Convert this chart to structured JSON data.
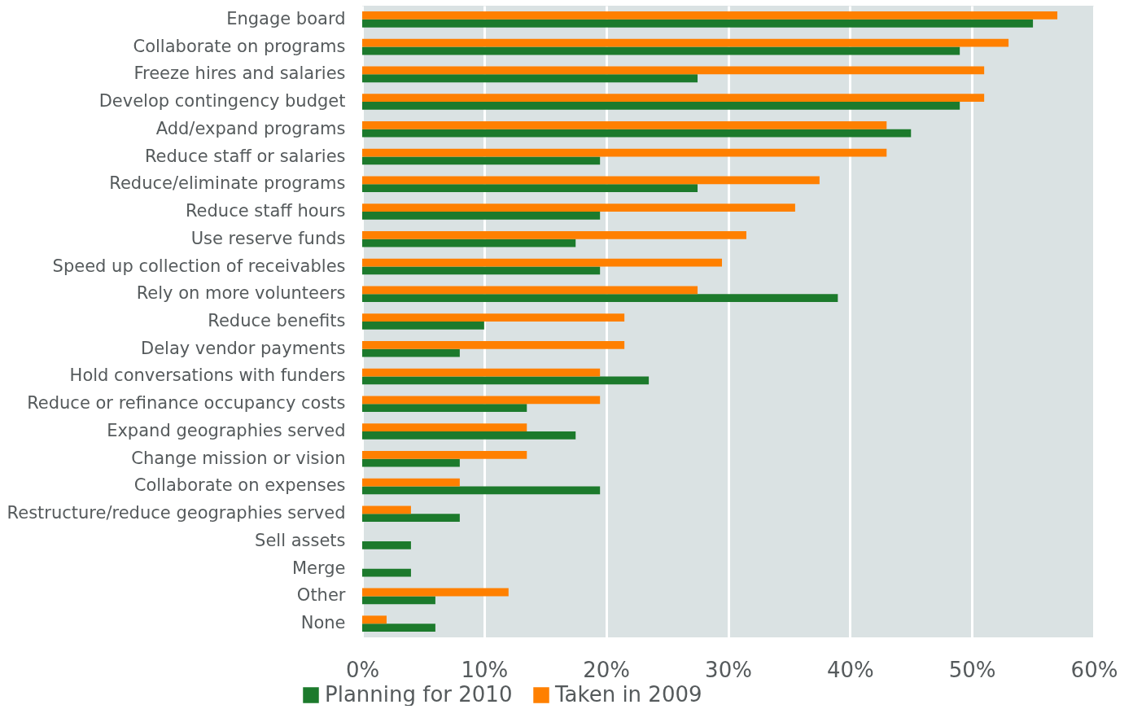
{
  "chart_data": {
    "type": "bar",
    "orientation": "horizontal",
    "categories": [
      "Engage board",
      "Collaborate on programs",
      "Freeze hires and salaries",
      "Develop contingency budget",
      "Add/expand programs",
      "Reduce staff or salaries",
      "Reduce/eliminate programs",
      "Reduce staff hours",
      "Use reserve funds",
      "Speed up collection of receivables",
      "Rely on more volunteers",
      "Reduce benefits",
      "Delay vendor payments",
      "Hold conversations with funders",
      "Reduce or refinance occupancy costs",
      "Expand geographies served",
      "Change mission or vision",
      "Collaborate on expenses",
      "Restructure/reduce geographies served",
      "Sell assets",
      "Merge",
      "Other",
      "None"
    ],
    "series": [
      {
        "name": "Planning for 2010",
        "color": "#1c7a2c",
        "values": [
          55,
          49,
          27.5,
          49,
          45,
          19.5,
          27.5,
          19.5,
          17.5,
          19.5,
          39,
          10,
          8,
          23.5,
          13.5,
          17.5,
          8,
          19.5,
          8,
          4,
          4,
          6,
          6
        ]
      },
      {
        "name": "Taken in 2009",
        "color": "#ff8000",
        "values": [
          57,
          53,
          51,
          51,
          43,
          43,
          37.5,
          35.5,
          31.5,
          29.5,
          27.5,
          21.5,
          21.5,
          19.5,
          19.5,
          13.5,
          13.5,
          8,
          4,
          0,
          0,
          12,
          2
        ]
      }
    ],
    "xlim": [
      0,
      60
    ],
    "xticks": [
      {
        "value": 0,
        "label": "0%"
      },
      {
        "value": 10,
        "label": "10%"
      },
      {
        "value": 20,
        "label": "20%"
      },
      {
        "value": 30,
        "label": "30%"
      },
      {
        "value": 40,
        "label": "40%"
      },
      {
        "value": 50,
        "label": "50%"
      },
      {
        "value": 60,
        "label": "60%"
      }
    ],
    "grid": "x",
    "legend": "bottom"
  }
}
